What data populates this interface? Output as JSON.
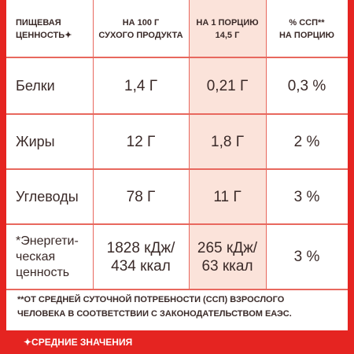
{
  "table": {
    "header": [
      [
        "ПИЩЕВАЯ",
        "ЦЕННОСТЬ✦"
      ],
      [
        "НА 100 Г",
        "СУХОГО ПРОДУКТА"
      ],
      [
        "НА 1 ПОРЦИЮ",
        "14,5 Г"
      ],
      [
        "% ССП**",
        "НА ПОРЦИЮ"
      ]
    ],
    "rows": [
      [
        [
          "Белки"
        ],
        [
          "1,4 Г"
        ],
        [
          "0,21 Г"
        ],
        [
          "0,3 %"
        ]
      ],
      [
        [
          "Жиры"
        ],
        [
          "12 Г"
        ],
        [
          "1,8 Г"
        ],
        [
          "2 %"
        ]
      ],
      [
        [
          "Углеводы"
        ],
        [
          "78 Г"
        ],
        [
          "11 Г"
        ],
        [
          "3 %"
        ]
      ],
      [
        [
          "*Энергети-",
          "ческая",
          "ценность"
        ],
        [
          "1828 кДж/",
          "434 ккал"
        ],
        [
          "265 кДж/",
          "63 ккал"
        ],
        [
          "3 %"
        ]
      ]
    ]
  },
  "footnote": [
    "**ОТ СРЕДНЕЙ СУТОЧНОЙ ПОТРЕБНОСТИ (ССП) ВЗРОСЛОГО",
    "ЧЕЛОВЕКА В СООТВЕТСТВИИ С ЗАКОНОДАТЕЛЬСТВОМ ЕАЭС."
  ],
  "bottom_note": "✦СРЕДНИЕ ЗНАЧЕНИЯ"
}
